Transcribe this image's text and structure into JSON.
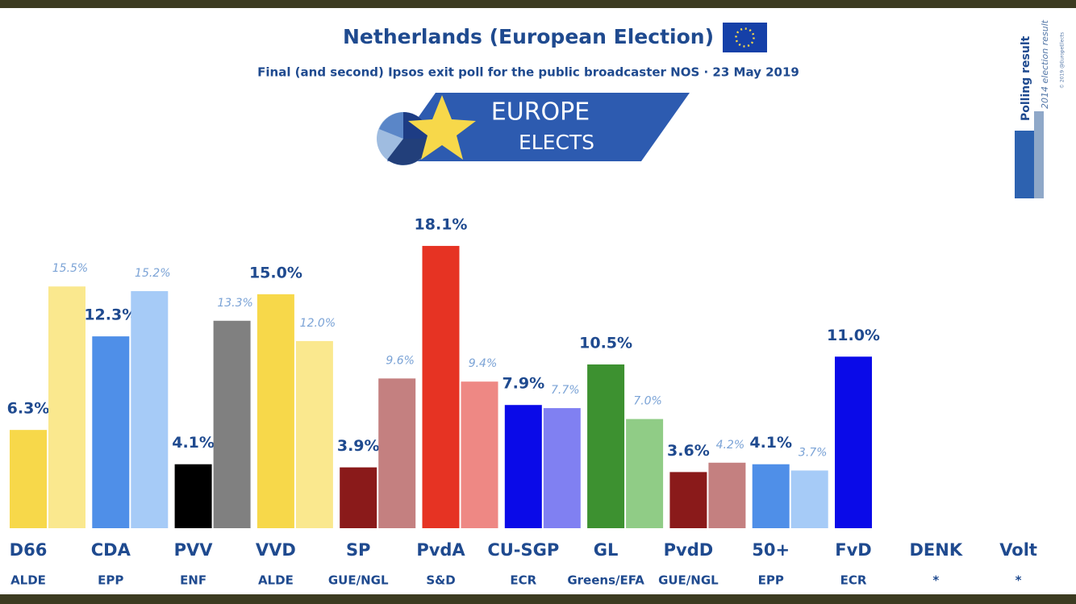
{
  "chart_data": {
    "type": "bar",
    "title": "Netherlands (European Election)",
    "subtitle": "Final (and second) Ipsos exit poll for the public broadcaster NOS · 23 May 2019",
    "logo": [
      "EUROPE",
      "ELECTS"
    ],
    "credit": "© 2019 @EuropeElects",
    "categories": [
      "D66",
      "CDA",
      "PVV",
      "VVD",
      "SP",
      "PvdA",
      "CU-SGP",
      "GL",
      "PvdD",
      "50+",
      "FvD",
      "DENK",
      "Volt"
    ],
    "groups": [
      "ALDE",
      "EPP",
      "ENF",
      "ALDE",
      "GUE/NGL",
      "S&D",
      "ECR",
      "Greens/EFA",
      "GUE/NGL",
      "EPP",
      "ECR",
      "*",
      "*"
    ],
    "series": [
      {
        "name": "Polling result",
        "color": "#2d62b0",
        "colors": [
          "#f7d84a",
          "#4f8fe8",
          "#000000",
          "#f7d84a",
          "#8a1a1a",
          "#e63323",
          "#0a0ae8",
          "#3d9130",
          "#8a1a1a",
          "#4f8fe8",
          "#0a0ae8",
          "#cccccc",
          "#cccccc"
        ],
        "values": [
          6.3,
          12.3,
          4.1,
          15.0,
          3.9,
          18.1,
          7.9,
          10.5,
          3.6,
          4.1,
          11.0,
          null,
          null
        ],
        "value_labels": [
          "6.3%",
          "12.3%",
          "4.1%",
          "15.0%",
          "3.9%",
          "18.1%",
          "7.9%",
          "10.5%",
          "3.6%",
          "4.1%",
          "11.0%",
          null,
          null
        ]
      },
      {
        "name": "2014 election result",
        "color": "#8fa8c8",
        "colors": [
          "#fae88e",
          "#a6cbf7",
          "#808080",
          "#fae88e",
          "#c48080",
          "#ee8884",
          "#8080f2",
          "#90cc86",
          "#c48080",
          "#a6cbf7",
          "#cccccc",
          "#cccccc",
          "#cccccc"
        ],
        "values": [
          15.5,
          15.2,
          13.3,
          12.0,
          9.6,
          9.4,
          7.7,
          7.0,
          4.2,
          3.7,
          null,
          null,
          null
        ],
        "value_labels": [
          "15.5%",
          "15.2%",
          "13.3%",
          "12.0%",
          "9.6%",
          "9.4%",
          "7.7%",
          "7.0%",
          "4.2%",
          "3.7%",
          null,
          null,
          null
        ]
      }
    ]
  }
}
